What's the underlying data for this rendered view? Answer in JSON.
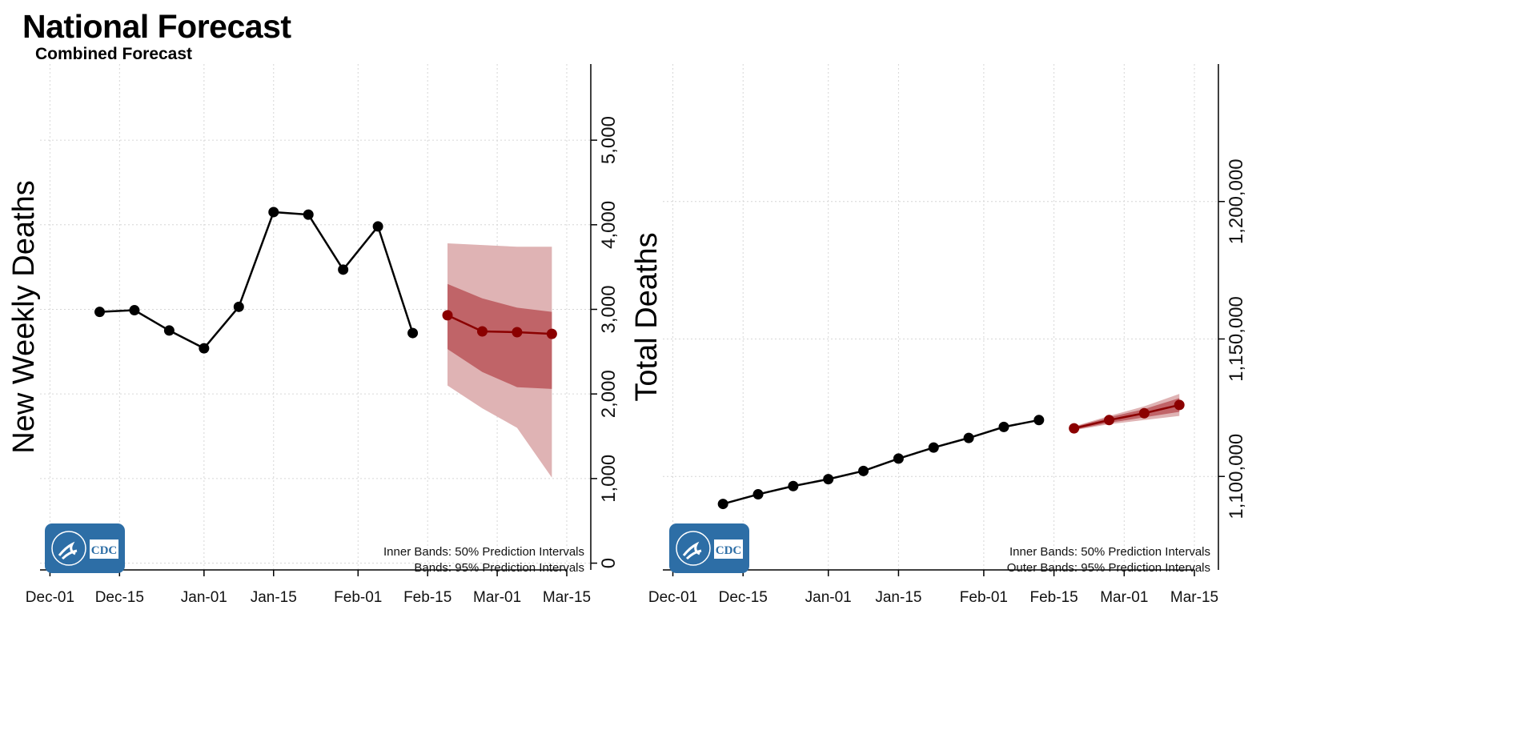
{
  "title": "National Forecast",
  "subtitle": "Combined Forecast",
  "logo_text": "CDC",
  "colors": {
    "observed": "#000000",
    "forecast": "#8b0000",
    "band_inner": "#c06468",
    "band_outer": "#dfb3b4",
    "logo_bg": "#2d6ea6"
  },
  "chart_data": [
    {
      "type": "line",
      "ylabel": "New Weekly Deaths",
      "xlabel": "",
      "x_ticks": [
        "Dec-01",
        "Dec-15",
        "Jan-01",
        "Jan-15",
        "Feb-01",
        "Feb-15",
        "Mar-01",
        "Mar-15"
      ],
      "x_tick_days": [
        0,
        14,
        31,
        45,
        62,
        76,
        90,
        104
      ],
      "x_range_days": [
        -2,
        104
      ],
      "y_ticks": [
        0,
        1000,
        2000,
        3000,
        4000,
        5000
      ],
      "y_tick_labels": [
        "0",
        "1,000",
        "2,000",
        "3,000",
        "4,000",
        "5,000"
      ],
      "ylim": [
        -80,
        5900
      ],
      "grid": true,
      "legend_notes": [
        "Inner Bands: 50% Prediction Intervals",
        "Bands: 95% Prediction Intervals"
      ],
      "observed": {
        "x_days": [
          10,
          17,
          24,
          31,
          38,
          45,
          52,
          59,
          66,
          73
        ],
        "y": [
          2970,
          2990,
          2750,
          2540,
          3030,
          4150,
          4120,
          3470,
          3980,
          2720
        ]
      },
      "forecast": {
        "x_days": [
          80,
          87,
          94,
          101
        ],
        "y": [
          2930,
          2740,
          2730,
          2710
        ],
        "inner_lower": [
          2530,
          2260,
          2080,
          2060
        ],
        "inner_upper": [
          3300,
          3130,
          3020,
          2970
        ],
        "outer_lower": [
          2100,
          1830,
          1600,
          1010
        ],
        "outer_upper": [
          3780,
          3760,
          3740,
          3740
        ]
      }
    },
    {
      "type": "line",
      "ylabel": "Total Deaths",
      "xlabel": "",
      "x_ticks": [
        "Dec-01",
        "Dec-15",
        "Jan-01",
        "Jan-15",
        "Feb-01",
        "Feb-15",
        "Mar-01",
        "Mar-15"
      ],
      "x_tick_days": [
        0,
        14,
        31,
        45,
        62,
        76,
        90,
        104
      ],
      "x_range_days": [
        -2,
        104
      ],
      "y_ticks": [
        1100000,
        1150000,
        1200000
      ],
      "y_tick_labels": [
        "1,100,000",
        "1,150,000",
        "1,200,000"
      ],
      "ylim": [
        1066000,
        1250000
      ],
      "grid": true,
      "legend_notes": [
        "Inner Bands: 50% Prediction Intervals",
        "Outer Bands: 95% Prediction Intervals"
      ],
      "observed": {
        "x_days": [
          10,
          17,
          24,
          31,
          38,
          45,
          52,
          59,
          66,
          73
        ],
        "y": [
          1090000,
          1093500,
          1096500,
          1099000,
          1102000,
          1106500,
          1110500,
          1114000,
          1118000,
          1120500
        ]
      },
      "forecast": {
        "x_days": [
          80,
          87,
          94,
          101
        ],
        "y": [
          1117500,
          1120500,
          1123000,
          1126000
        ],
        "inner_lower": [
          1117000,
          1119500,
          1121500,
          1123500
        ],
        "inner_upper": [
          1118000,
          1121500,
          1124500,
          1128500
        ],
        "outer_lower": [
          1116800,
          1119000,
          1120500,
          1122000
        ],
        "outer_upper": [
          1118200,
          1122000,
          1125500,
          1130000
        ]
      }
    }
  ]
}
